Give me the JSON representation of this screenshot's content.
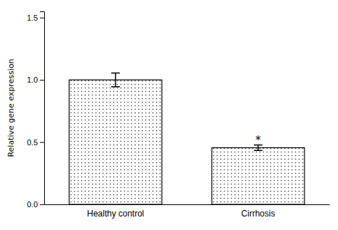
{
  "chart_data": {
    "type": "bar",
    "categories": [
      "Healthy control",
      "Cirrhosis"
    ],
    "values": [
      1.0,
      0.455
    ],
    "error_bars": [
      0.055,
      0.022
    ],
    "color": "white",
    "ylabel": "Relative gene expression",
    "ylim": [
      0,
      1.55
    ],
    "yticks": [
      {
        "value": 0.0,
        "label": "0.0"
      },
      {
        "value": 0.5,
        "label": "0.5"
      },
      {
        "value": 1.0,
        "label": "1.0"
      },
      {
        "value": 1.5,
        "label": "1.5"
      }
    ],
    "grid": false,
    "annotations": [
      {
        "text": "*",
        "category": "Cirrhosis"
      }
    ]
  }
}
